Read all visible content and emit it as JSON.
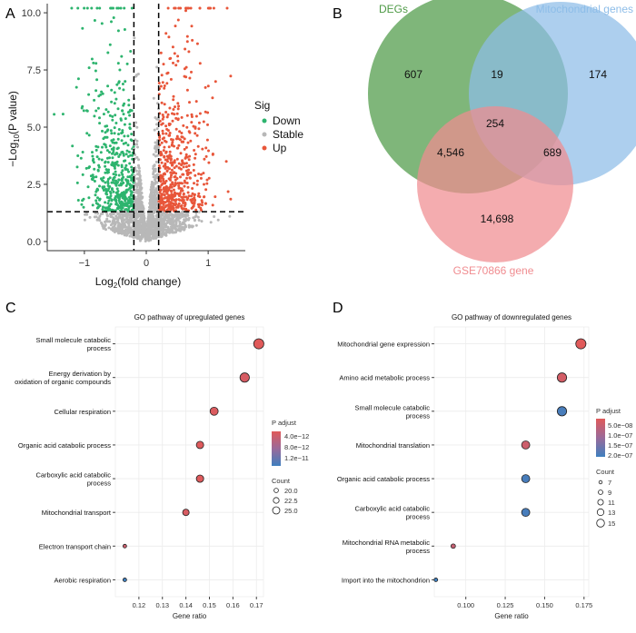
{
  "panels": {
    "a": "A",
    "b": "B",
    "c": "C",
    "d": "D"
  },
  "chart_data": [
    {
      "id": "volcano",
      "type": "scatter",
      "xlabel_main": "Log",
      "xlabel_sub": "2",
      "xlabel_rest": "(fold change)",
      "ylabel_pre": "−Log",
      "ylabel_sub": "10",
      "ylabel_rest": "(P value)",
      "xlim": [
        -1.6,
        1.6
      ],
      "ylim": [
        -0.4,
        10.4
      ],
      "xticks": [
        -1,
        0,
        1
      ],
      "yticks": [
        0.0,
        2.5,
        5.0,
        7.5,
        10.0
      ],
      "xtick_labels": [
        "−1",
        "0",
        "1"
      ],
      "ytick_labels": [
        "0.0",
        "2.5",
        "5.0",
        "7.5",
        "10.0"
      ],
      "fc_threshold": [
        -0.2,
        0.2
      ],
      "p_threshold": 1.3,
      "legend_title": "Sig",
      "legend": [
        {
          "name": "Down",
          "color": "#2db46e"
        },
        {
          "name": "Stable",
          "color": "#b8b8b8"
        },
        {
          "name": "Up",
          "color": "#e8563a"
        }
      ]
    },
    {
      "id": "venn",
      "type": "venn",
      "sets": [
        {
          "name": "DEGs",
          "color": "#4e9a46"
        },
        {
          "name": "Mitochondrial genes",
          "color": "#8dbde8"
        },
        {
          "name": "GSE70866 gene",
          "color": "#f08c90"
        }
      ],
      "regions": {
        "degs_only": "607",
        "mito_only": "174",
        "gse_only": "14,698",
        "degs_mito": "19",
        "degs_gse": "4,546",
        "mito_gse": "689",
        "all": "254"
      }
    },
    {
      "id": "go_up",
      "type": "scatter",
      "title": "GO pathway of upregulated genes",
      "xlabel": "Gene ratio",
      "xlim": [
        0.11,
        0.173
      ],
      "xticks": [
        0.12,
        0.13,
        0.14,
        0.15,
        0.16,
        0.17
      ],
      "xtick_labels": [
        "0.12",
        "0.13",
        "0.14",
        "0.15",
        "0.16",
        "0.17"
      ],
      "terms": [
        {
          "lines": [
            "Small molecule catabolic",
            "process"
          ],
          "ratio": 0.171,
          "count": 25.5,
          "padj": 1e-12
        },
        {
          "lines": [
            "Energy derivation by",
            "oxidation of organic compounds"
          ],
          "ratio": 0.165,
          "count": 24.5,
          "padj": 2e-12
        },
        {
          "lines": [
            "Cellular respiration"
          ],
          "ratio": 0.152,
          "count": 23.0,
          "padj": 1.5e-12
        },
        {
          "lines": [
            "Organic acid catabolic process"
          ],
          "ratio": 0.146,
          "count": 22.0,
          "padj": 1.2e-12
        },
        {
          "lines": [
            "Carboxylic acid catabolic",
            "process"
          ],
          "ratio": 0.146,
          "count": 22.0,
          "padj": 1.2e-12
        },
        {
          "lines": [
            "Mitochondrial transport"
          ],
          "ratio": 0.14,
          "count": 21.0,
          "padj": 1.8e-12
        },
        {
          "lines": [
            "Electron transport chain"
          ],
          "ratio": 0.114,
          "count": 17.5,
          "padj": 3e-12
        },
        {
          "lines": [
            "Aerobic respiration"
          ],
          "ratio": 0.114,
          "count": 17.5,
          "padj": 1.45e-11
        }
      ],
      "color_title": "P adjust",
      "color_ticks": [
        "4.0e−12",
        "8.0e−12",
        "1.2e−11"
      ],
      "size_title": "Count",
      "size_legend": [
        "20.0",
        "22.5",
        "25.0"
      ]
    },
    {
      "id": "go_down",
      "type": "scatter",
      "title": "GO pathway of downregulated genes",
      "xlabel": "Gene ratio",
      "xlim": [
        0.08,
        0.178
      ],
      "xticks": [
        0.1,
        0.125,
        0.15,
        0.175
      ],
      "xtick_labels": [
        "0.100",
        "0.125",
        "0.150",
        "0.175"
      ],
      "terms": [
        {
          "lines": [
            "Mitochondrial gene expression"
          ],
          "ratio": 0.173,
          "count": 15.5,
          "padj": 1e-08
        },
        {
          "lines": [
            "Amino acid metabolic process"
          ],
          "ratio": 0.161,
          "count": 14.5,
          "padj": 3e-08
        },
        {
          "lines": [
            "Small molecule catabolic",
            "process"
          ],
          "ratio": 0.161,
          "count": 14.5,
          "padj": 2.1e-07
        },
        {
          "lines": [
            "Mitochondrial translation"
          ],
          "ratio": 0.138,
          "count": 13.0,
          "padj": 4e-08
        },
        {
          "lines": [
            "Organic acid catabolic process"
          ],
          "ratio": 0.138,
          "count": 13.0,
          "padj": 2.1e-07
        },
        {
          "lines": [
            "Carboxylic acid catabolic",
            "process"
          ],
          "ratio": 0.138,
          "count": 13.0,
          "padj": 2.1e-07
        },
        {
          "lines": [
            "Mitochondrial RNA metabolic",
            "process"
          ],
          "ratio": 0.092,
          "count": 8.5,
          "padj": 5e-08
        },
        {
          "lines": [
            "Import into the mitochondrion"
          ],
          "ratio": 0.081,
          "count": 7.5,
          "padj": 2.2e-07
        }
      ],
      "color_title": "P adjust",
      "color_ticks": [
        "5.0e−08",
        "1.0e−07",
        "1.5e−07",
        "2.0e−07"
      ],
      "size_title": "Count",
      "size_legend": [
        "7",
        "9",
        "11",
        "13",
        "15"
      ]
    }
  ]
}
